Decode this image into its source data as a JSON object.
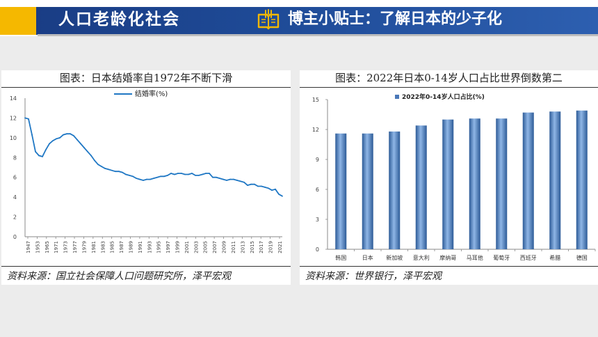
{
  "header": {
    "section_title": "人口老龄化社会",
    "tip_title": "博主小贴士：了解日本的少子化"
  },
  "colors": {
    "brand_blue": "#1e4a96",
    "accent_yellow": "#f5b800",
    "series_blue": "#1f77c4"
  },
  "left_panel": {
    "title": "图表：日本结婚率自1972年不断下滑",
    "source": "资料来源：国立社会保障人口问题研究所，泽平宏观"
  },
  "right_panel": {
    "title": "图表：2022年日本0-14岁人口占比世界倒数第二",
    "source": "资料来源：世界银行，泽平宏观"
  },
  "chart_data": [
    {
      "type": "line",
      "title": "图表：日本结婚率自1972年不断下滑",
      "series": [
        {
          "name": "结婚率(%)",
          "x": [
            1947,
            1948,
            1949,
            1950,
            1951,
            1952,
            1953,
            1954,
            1955,
            1956,
            1957,
            1958,
            1959,
            1960,
            1961,
            1962,
            1963,
            1964,
            1965,
            1966,
            1967,
            1968,
            1969,
            1970,
            1971,
            1972,
            1973,
            1974,
            1975,
            1976,
            1977,
            1978,
            1979,
            1980,
            1981,
            1982,
            1983,
            1984,
            1985,
            1986,
            1987,
            1988,
            1989,
            1990,
            1991,
            1992,
            1993,
            1994,
            1995,
            1996,
            1997,
            1998,
            1999,
            2000,
            2001,
            2002,
            2003,
            2004,
            2005,
            2006,
            2007,
            2008,
            2009,
            2010,
            2011,
            2012,
            2013,
            2014,
            2015,
            2016,
            2017,
            2018,
            2019,
            2020,
            2021
          ],
          "values": [
            12.0,
            11.9,
            10.3,
            8.6,
            8.2,
            8.1,
            8.8,
            9.4,
            9.7,
            9.9,
            10.0,
            10.3,
            10.4,
            10.4,
            10.2,
            9.8,
            9.4,
            9.0,
            8.6,
            8.2,
            7.7,
            7.3,
            7.1,
            6.9,
            6.8,
            6.7,
            6.6,
            6.6,
            6.5,
            6.3,
            6.2,
            6.1,
            5.9,
            5.8,
            5.7,
            5.8,
            5.8,
            5.9,
            6.0,
            6.1,
            6.1,
            6.2,
            6.4,
            6.3,
            6.4,
            6.4,
            6.3,
            6.3,
            6.4,
            6.2,
            6.2,
            6.3,
            6.4,
            6.4,
            6.0,
            6.0,
            5.9,
            5.8,
            5.7,
            5.8,
            5.8,
            5.7,
            5.6,
            5.5,
            5.2,
            5.3,
            5.3,
            5.1,
            5.1,
            5.0,
            4.9,
            4.7,
            4.8,
            4.3,
            4.1
          ]
        }
      ],
      "xticks": [
        "1947",
        "1953",
        "1965",
        "1971",
        "1973",
        "1977",
        "1979",
        "1981",
        "1983",
        "1985",
        "1987",
        "1989",
        "1991",
        "1993",
        "1995",
        "1997",
        "1999",
        "2001",
        "2003",
        "2005",
        "2007",
        "2009",
        "2011",
        "2013",
        "2015",
        "2017",
        "2019",
        "2021"
      ],
      "ylim": [
        0,
        14
      ],
      "yticks": [
        0,
        2,
        4,
        6,
        8,
        10,
        12,
        14
      ],
      "legend": "top-center",
      "grid": false
    },
    {
      "type": "bar",
      "title": "图表：2022年日本0-14岁人口占比世界倒数第二",
      "categories": [
        "韩国",
        "日本",
        "新加坡",
        "意大利",
        "摩纳哥",
        "马耳他",
        "葡萄牙",
        "西班牙",
        "希腊",
        "德国"
      ],
      "series": [
        {
          "name": "2022年0-14岁人口占比(%)",
          "values": [
            11.6,
            11.6,
            11.8,
            12.4,
            13.0,
            13.1,
            13.1,
            13.7,
            13.8,
            13.9
          ]
        }
      ],
      "ylim": [
        0,
        15
      ],
      "yticks": [
        0,
        3,
        6,
        9,
        12,
        15
      ],
      "legend": "top-center",
      "grid": false
    }
  ]
}
